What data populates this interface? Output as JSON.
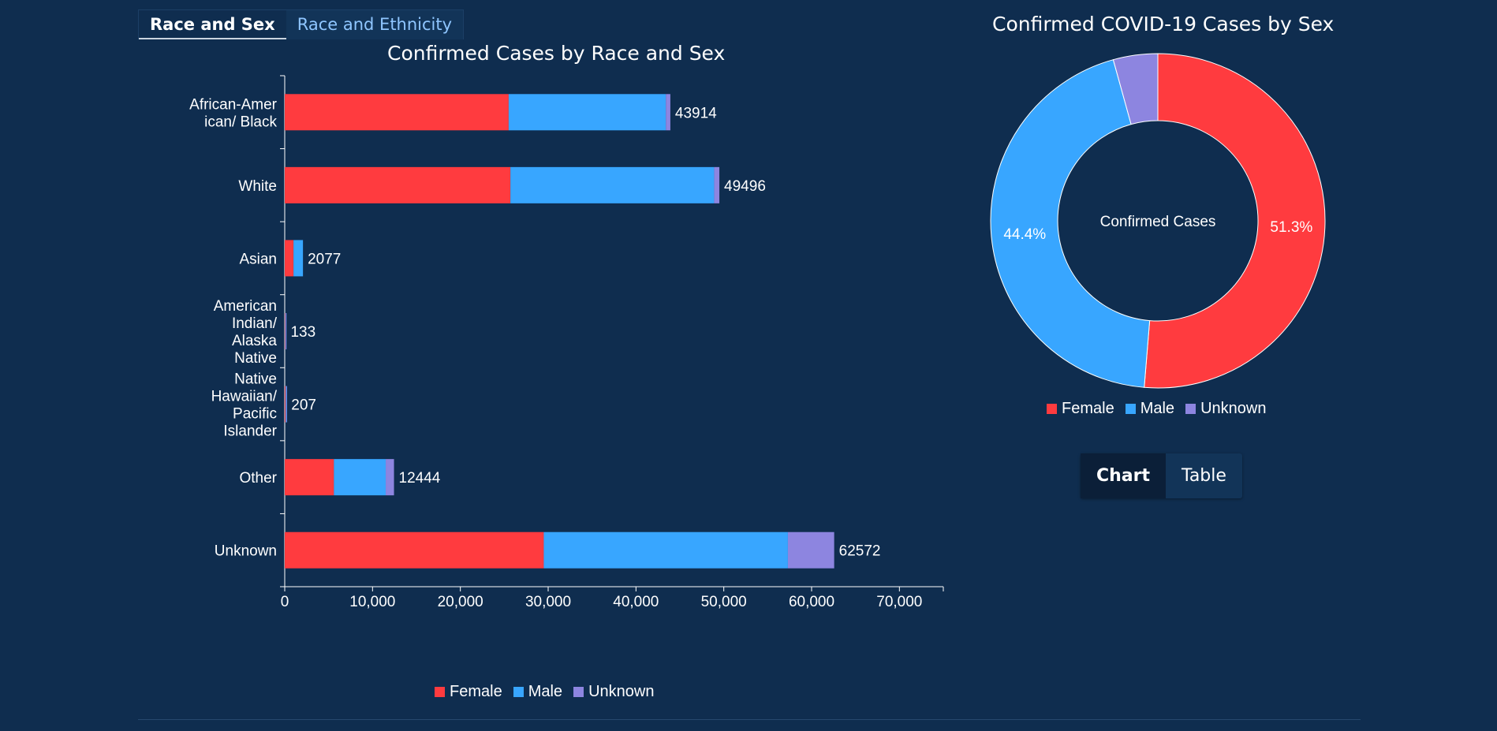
{
  "tabs": {
    "race_sex": "Race and Sex",
    "race_ethnicity": "Race and Ethnicity"
  },
  "colors": {
    "female": "#ff3b3f",
    "male": "#38a6ff",
    "unknown": "#8d85e0",
    "background": "#0f2d4f"
  },
  "chart_data": [
    {
      "type": "bar",
      "orientation": "horizontal",
      "stacked": true,
      "title": "Confirmed Cases by Race and Sex",
      "categories": [
        [
          "African-Amer",
          "ican/ Black"
        ],
        [
          "White"
        ],
        [
          "Asian"
        ],
        [
          "American",
          "Indian/",
          "Alaska",
          "Native"
        ],
        [
          "Native",
          "Hawaiian/",
          "Pacific",
          "Islander"
        ],
        [
          "Other"
        ],
        [
          "Unknown"
        ]
      ],
      "series": [
        {
          "name": "Female",
          "values": [
            25500,
            25700,
            1000,
            65,
            100,
            5600,
            29500
          ]
        },
        {
          "name": "Male",
          "values": [
            17900,
            23200,
            1077,
            63,
            100,
            5900,
            27800
          ]
        },
        {
          "name": "Unknown",
          "values": [
            514,
            596,
            0,
            5,
            7,
            944,
            5272
          ]
        }
      ],
      "totals": [
        "43914",
        "49496",
        "2077",
        "133",
        "207",
        "12444",
        "62572"
      ],
      "xlim": [
        0,
        75000
      ],
      "xticks": [
        0,
        10000,
        20000,
        30000,
        40000,
        50000,
        60000,
        70000
      ],
      "xtick_labels": [
        "0",
        "10,000",
        "20,000",
        "30,000",
        "40,000",
        "50,000",
        "60,000",
        "70,000"
      ],
      "legend": [
        "Female",
        "Male",
        "Unknown"
      ],
      "legend_position": "bottom"
    },
    {
      "type": "pie",
      "donut": true,
      "title": "Confirmed COVID-19 Cases by Sex",
      "center_label": "Confirmed Cases",
      "labels": [
        "Female",
        "Male",
        "Unknown"
      ],
      "values": [
        51.3,
        44.4,
        4.3
      ],
      "value_labels": [
        "51.3%",
        "44.4%",
        ""
      ],
      "legend_position": "bottom"
    }
  ],
  "view_toggle": {
    "chart": "Chart",
    "table": "Table"
  }
}
